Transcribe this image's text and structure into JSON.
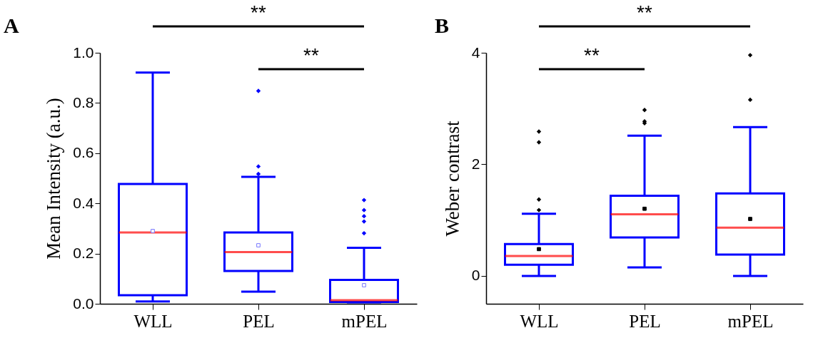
{
  "chart_data": [
    {
      "type": "box",
      "title": "A",
      "ylabel": "Mean Intensity (a.u.)",
      "categories": [
        "WLL",
        "PEL",
        "mPEL"
      ],
      "ylim": [
        0,
        1.0
      ],
      "yticks": [
        {
          "value": 0,
          "label": "0.0"
        },
        {
          "value": 0.2,
          "label": "0.2"
        },
        {
          "value": 0.4,
          "label": "0.4"
        },
        {
          "value": 0.6,
          "label": "0.6"
        },
        {
          "value": 0.8,
          "label": "0.8"
        },
        {
          "value": 1.0,
          "label": "1.0"
        }
      ],
      "annotations": [
        "**",
        "**"
      ],
      "series": [
        {
          "color": "#0000ff",
          "boxes": [
            {
              "low": 0.009,
              "q1": 0.034,
              "median": 0.284,
              "q3": 0.477,
              "high": 0.921,
              "mean": 0.29
            },
            {
              "low": 0.048,
              "q1": 0.131,
              "median": 0.206,
              "q3": 0.284,
              "high": 0.506,
              "mean": 0.233,
              "outliers": [
                0.848,
                0.547,
                0.517
              ]
            },
            {
              "low": 0.006,
              "q1": 0.007,
              "median": 0.014,
              "q3": 0.095,
              "high": 0.223,
              "mean": 0.074,
              "outliers": [
                0.413,
                0.373,
                0.349,
                0.328,
                0.281
              ]
            }
          ]
        }
      ]
    },
    {
      "type": "box",
      "title": "B",
      "ylabel": "Weber contrast",
      "categories": [
        "WLL",
        "PEL",
        "mPEL"
      ],
      "ylim": [
        -0.5,
        4
      ],
      "yticks": [
        0,
        2,
        4
      ],
      "annotations": [
        "**",
        "**"
      ],
      "series": [
        {
          "color": "#0000ff",
          "boxes": [
            {
              "low": 0.0,
              "q1": 0.2,
              "median": 0.357,
              "q3": 0.57,
              "high": 1.115,
              "mean": 0.48,
              "outliers": [
                2.587,
                2.396,
                1.37,
                1.18
              ]
            },
            {
              "low": 0.153,
              "q1": 0.689,
              "median": 1.106,
              "q3": 1.438,
              "high": 2.515,
              "mean": 1.204,
              "outliers": [
                2.974,
                2.77,
                2.736
              ]
            },
            {
              "low": 0.0,
              "q1": 0.383,
              "median": 0.864,
              "q3": 1.477,
              "high": 2.668,
              "mean": 1.021,
              "outliers": [
                3.957,
                3.157
              ]
            }
          ]
        }
      ]
    }
  ]
}
